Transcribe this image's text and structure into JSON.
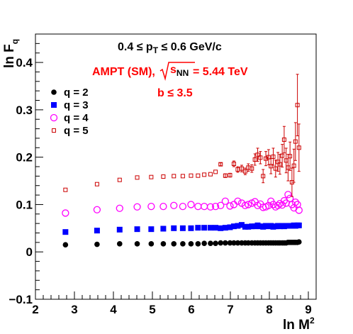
{
  "chart_data": {
    "type": "scatter",
    "title": "",
    "xlabel": "ln M",
    "xlabel_sup": "2",
    "ylabel": "ln F",
    "ylabel_sub": "q",
    "xlim": [
      2,
      9.2
    ],
    "ylim": [
      -0.1,
      0.46
    ],
    "xticks": [
      2,
      3,
      4,
      5,
      6,
      7,
      8,
      9
    ],
    "yticks": [
      -0.1,
      0,
      0.1,
      0.2,
      0.3,
      0.4
    ],
    "ytick_labels": [
      "−0.1",
      "0",
      "0.1",
      "0.2",
      "0.3",
      "0.4"
    ],
    "legend_position": "upper-left",
    "annotations": {
      "pt": {
        "line1_prefix": "0.4 ≤ p",
        "line1_sub": "T",
        "line1_suffix": " ≤ 0.6 GeV/c",
        "color": "#000000"
      },
      "ampt": {
        "prefix": "AMPT (SM), ",
        "root": "s",
        "root_sub": "NN",
        "suffix": " = 5.44 TeV",
        "color": "#ff0000"
      },
      "b": {
        "text": "b ≤ 3.5",
        "color": "#ff0000"
      }
    },
    "series": [
      {
        "name": "q = 2",
        "marker": "filled-circle",
        "color": "#000000",
        "points": [
          [
            2.77,
            0.015
          ],
          [
            3.58,
            0.016
          ],
          [
            4.16,
            0.017
          ],
          [
            4.61,
            0.017
          ],
          [
            4.97,
            0.017
          ],
          [
            5.28,
            0.017
          ],
          [
            5.55,
            0.017
          ],
          [
            5.78,
            0.017
          ],
          [
            5.99,
            0.017
          ],
          [
            6.17,
            0.017
          ],
          [
            6.33,
            0.018
          ],
          [
            6.49,
            0.018
          ],
          [
            6.62,
            0.018
          ],
          [
            6.75,
            0.019
          ],
          [
            6.87,
            0.019
          ],
          [
            6.99,
            0.019
          ],
          [
            7.09,
            0.019
          ],
          [
            7.19,
            0.019
          ],
          [
            7.29,
            0.019
          ],
          [
            7.38,
            0.019
          ],
          [
            7.46,
            0.019
          ],
          [
            7.55,
            0.019
          ],
          [
            7.63,
            0.019
          ],
          [
            7.7,
            0.019
          ],
          [
            7.77,
            0.019
          ],
          [
            7.84,
            0.019
          ],
          [
            7.91,
            0.019
          ],
          [
            7.98,
            0.019
          ],
          [
            8.04,
            0.019
          ],
          [
            8.1,
            0.019
          ],
          [
            8.16,
            0.019
          ],
          [
            8.22,
            0.019
          ],
          [
            8.27,
            0.019
          ],
          [
            8.33,
            0.019
          ],
          [
            8.38,
            0.019
          ],
          [
            8.43,
            0.019
          ],
          [
            8.48,
            0.02
          ],
          [
            8.53,
            0.02
          ],
          [
            8.58,
            0.02
          ],
          [
            8.63,
            0.02
          ],
          [
            8.67,
            0.02
          ],
          [
            8.72,
            0.02
          ],
          [
            8.76,
            0.021
          ]
        ]
      },
      {
        "name": "q = 3",
        "marker": "filled-square",
        "color": "#0000ff",
        "points": [
          [
            2.77,
            0.042
          ],
          [
            3.58,
            0.045
          ],
          [
            4.16,
            0.047
          ],
          [
            4.61,
            0.048
          ],
          [
            4.97,
            0.048
          ],
          [
            5.28,
            0.049
          ],
          [
            5.55,
            0.05
          ],
          [
            5.78,
            0.05
          ],
          [
            5.99,
            0.05
          ],
          [
            6.17,
            0.051
          ],
          [
            6.33,
            0.051
          ],
          [
            6.49,
            0.051
          ],
          [
            6.62,
            0.051
          ],
          [
            6.75,
            0.05
          ],
          [
            6.87,
            0.051
          ],
          [
            6.99,
            0.052
          ],
          [
            7.09,
            0.054
          ],
          [
            7.19,
            0.055
          ],
          [
            7.29,
            0.057
          ],
          [
            7.38,
            0.053
          ],
          [
            7.46,
            0.053
          ],
          [
            7.55,
            0.054
          ],
          [
            7.63,
            0.054
          ],
          [
            7.7,
            0.056
          ],
          [
            7.77,
            0.054
          ],
          [
            7.84,
            0.053
          ],
          [
            7.91,
            0.055
          ],
          [
            7.98,
            0.054
          ],
          [
            8.04,
            0.055
          ],
          [
            8.1,
            0.053
          ],
          [
            8.16,
            0.054
          ],
          [
            8.22,
            0.055
          ],
          [
            8.27,
            0.054
          ],
          [
            8.33,
            0.055
          ],
          [
            8.38,
            0.054
          ],
          [
            8.43,
            0.055
          ],
          [
            8.48,
            0.055
          ],
          [
            8.53,
            0.055
          ],
          [
            8.58,
            0.055
          ],
          [
            8.63,
            0.056
          ],
          [
            8.67,
            0.055
          ],
          [
            8.72,
            0.056
          ],
          [
            8.76,
            0.056
          ]
        ]
      },
      {
        "name": "q = 4",
        "marker": "open-circle",
        "color": "#ff00ff",
        "points": [
          [
            2.77,
            0.082
          ],
          [
            3.58,
            0.089
          ],
          [
            4.16,
            0.092
          ],
          [
            4.61,
            0.095
          ],
          [
            4.97,
            0.096
          ],
          [
            5.28,
            0.096
          ],
          [
            5.55,
            0.098
          ],
          [
            5.78,
            0.096
          ],
          [
            5.99,
            0.1
          ],
          [
            6.17,
            0.096
          ],
          [
            6.33,
            0.096
          ],
          [
            6.49,
            0.095
          ],
          [
            6.62,
            0.096
          ],
          [
            6.75,
            0.098
          ],
          [
            6.87,
            0.107
          ],
          [
            6.99,
            0.097
          ],
          [
            7.09,
            0.1
          ],
          [
            7.19,
            0.107
          ],
          [
            7.29,
            0.103
          ],
          [
            7.38,
            0.098
          ],
          [
            7.46,
            0.1
          ],
          [
            7.55,
            0.103
          ],
          [
            7.63,
            0.106
          ],
          [
            7.7,
            0.098
          ],
          [
            7.77,
            0.101
          ],
          [
            7.84,
            0.094
          ],
          [
            7.91,
            0.095
          ],
          [
            7.98,
            0.098
          ],
          [
            8.04,
            0.107
          ],
          [
            8.1,
            0.1
          ],
          [
            8.16,
            0.095
          ],
          [
            8.22,
            0.098
          ],
          [
            8.27,
            0.102
          ],
          [
            8.33,
            0.099
          ],
          [
            8.38,
            0.108
          ],
          [
            8.43,
            0.103
          ],
          [
            8.48,
            0.121
          ],
          [
            8.53,
            0.113
          ],
          [
            8.58,
            0.1
          ],
          [
            8.63,
            0.093
          ],
          [
            8.67,
            0.105
          ],
          [
            8.72,
            0.1
          ],
          [
            8.76,
            0.088
          ]
        ]
      },
      {
        "name": "q = 5",
        "marker": "open-square",
        "color": "#cc0000",
        "points": [
          [
            2.77,
            0.131,
            0.0
          ],
          [
            3.58,
            0.143,
            0.0
          ],
          [
            4.16,
            0.152,
            0.0
          ],
          [
            4.61,
            0.157,
            0.0
          ],
          [
            4.97,
            0.158,
            0.0
          ],
          [
            5.28,
            0.159,
            0.0
          ],
          [
            5.55,
            0.16,
            0.0
          ],
          [
            5.78,
            0.16,
            0.0
          ],
          [
            5.99,
            0.161,
            0.0
          ],
          [
            6.17,
            0.161,
            0.0
          ],
          [
            6.33,
            0.163,
            0.0
          ],
          [
            6.49,
            0.164,
            0.0
          ],
          [
            6.62,
            0.169,
            0.0
          ],
          [
            6.75,
            0.185,
            0.003
          ],
          [
            6.87,
            0.161,
            0.004
          ],
          [
            6.99,
            0.162,
            0.004
          ],
          [
            7.09,
            0.186,
            0.006
          ],
          [
            7.19,
            0.174,
            0.006
          ],
          [
            7.29,
            0.176,
            0.007
          ],
          [
            7.38,
            0.17,
            0.007
          ],
          [
            7.46,
            0.178,
            0.008
          ],
          [
            7.55,
            0.176,
            0.008
          ],
          [
            7.63,
            0.195,
            0.012
          ],
          [
            7.7,
            0.205,
            0.014
          ],
          [
            7.77,
            0.199,
            0.013
          ],
          [
            7.84,
            0.16,
            0.014
          ],
          [
            7.91,
            0.197,
            0.015
          ],
          [
            7.98,
            0.2,
            0.016
          ],
          [
            8.04,
            0.181,
            0.016
          ],
          [
            8.1,
            0.201,
            0.018
          ],
          [
            8.16,
            0.176,
            0.018
          ],
          [
            8.22,
            0.19,
            0.02
          ],
          [
            8.27,
            0.185,
            0.021
          ],
          [
            8.33,
            0.203,
            0.024
          ],
          [
            8.38,
            0.237,
            0.028
          ],
          [
            8.43,
            0.193,
            0.026
          ],
          [
            8.48,
            0.178,
            0.028
          ],
          [
            8.53,
            0.202,
            0.03
          ],
          [
            8.58,
            0.147,
            0.03
          ],
          [
            8.63,
            0.182,
            0.035
          ],
          [
            8.67,
            0.233,
            0.04
          ],
          [
            8.72,
            0.31,
            0.065
          ],
          [
            8.76,
            0.22,
            0.05
          ]
        ]
      }
    ]
  }
}
